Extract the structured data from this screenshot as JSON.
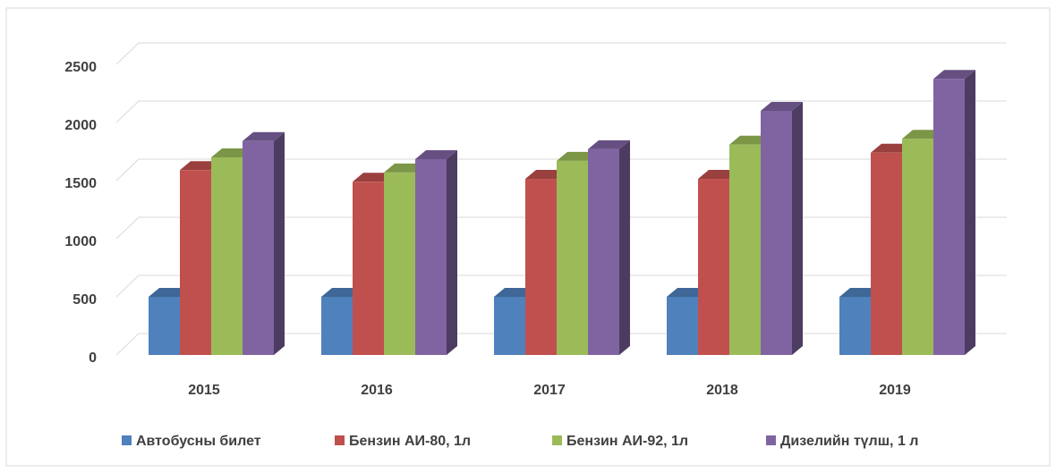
{
  "chart_data": {
    "type": "bar3d",
    "categories": [
      "2015",
      "2016",
      "2017",
      "2018",
      "2019"
    ],
    "series": [
      {
        "name": "Автобусны билет",
        "color": "#4f81bd",
        "values": [
          500,
          500,
          500,
          500,
          500
        ]
      },
      {
        "name": "Бензин АИ-80, 1л",
        "color": "#c0504d",
        "values": [
          1590,
          1490,
          1515,
          1515,
          1740
        ]
      },
      {
        "name": "Бензин АИ-92, 1л",
        "color": "#9bbb59",
        "values": [
          1700,
          1570,
          1670,
          1810,
          1860
        ]
      },
      {
        "name": "Дизелийн түлш, 1 л",
        "color": "#8064a2",
        "values": [
          1840,
          1685,
          1770,
          2100,
          2375
        ]
      }
    ],
    "ylim": [
      0,
      2500
    ],
    "yticks": [
      0,
      500,
      1000,
      1500,
      2000,
      2500
    ],
    "grid": true,
    "legend": "bottom"
  }
}
